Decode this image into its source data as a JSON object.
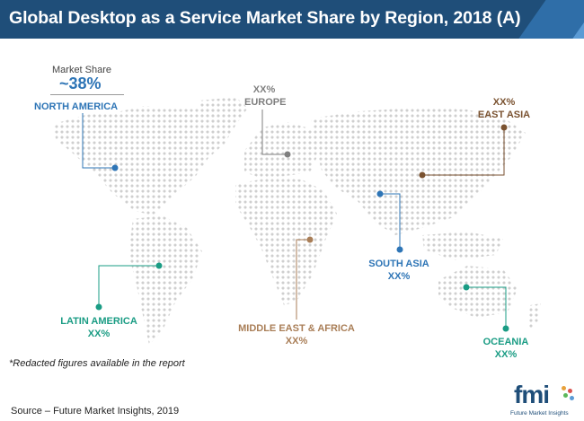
{
  "header": {
    "title": "Global Desktop as a Service Market Share by Region, 2018 (A)"
  },
  "market_share": {
    "label": "Market Share",
    "value": "~38%"
  },
  "regions": [
    {
      "key": "north_america",
      "name": "NORTH AMERICA",
      "value": "",
      "color": "#2e75b6"
    },
    {
      "key": "europe",
      "name": "EUROPE",
      "value": "XX%",
      "color": "#7f7f7f"
    },
    {
      "key": "east_asia",
      "name": "EAST ASIA",
      "value": "XX%",
      "color": "#7a5230"
    },
    {
      "key": "south_asia",
      "name": "SOUTH ASIA",
      "value": "XX%",
      "color": "#2e75b6"
    },
    {
      "key": "latin_america",
      "name": "LATIN AMERICA",
      "value": "XX%",
      "color": "#1a9c84"
    },
    {
      "key": "middle_east_africa",
      "name": "MIDDLE EAST & AFRICA",
      "value": "XX%",
      "color": "#a97e57"
    },
    {
      "key": "oceania",
      "name": "OCEANIA",
      "value": "XX%",
      "color": "#1a9c84"
    }
  ],
  "footer": {
    "note": "*Redacted figures available in the report",
    "source": "Source – Future Market Insights, 2019"
  },
  "logo": {
    "text": "fmi",
    "subtitle": "Future Market Insights"
  },
  "colors": {
    "header": "#1f4e79",
    "map_dots": "#cfcfcf"
  }
}
